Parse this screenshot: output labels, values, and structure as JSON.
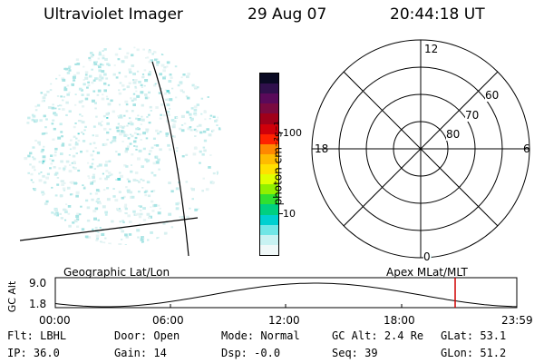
{
  "header": {
    "instrument": "Ultraviolet Imager",
    "date": "29 Aug 07",
    "time": "20:44:18 UT"
  },
  "colorbar": {
    "label": "photon cm⁻²s⁻¹",
    "tick_100": "100",
    "tick_10": "10",
    "colors": [
      "#0a0a23",
      "#30104c",
      "#5a0a5a",
      "#7a0a40",
      "#a0001a",
      "#d0000a",
      "#ff2200",
      "#ff8800",
      "#ffbb00",
      "#ffe000",
      "#e0ff00",
      "#90f000",
      "#30e030",
      "#00d080",
      "#00d0d0",
      "#70e6e6",
      "#c8f2f2",
      "#f0f8f8"
    ]
  },
  "polar": {
    "label_12": "12",
    "label_18": "18",
    "label_6": "6",
    "label_0": "0",
    "lat_60": "60",
    "lat_70": "70",
    "lat_80": "80"
  },
  "timeline": {
    "left_caption": "Geographic Lat/Lon",
    "right_caption": "Apex MLat/MLT",
    "axis_label": "GC Alt",
    "y_top": "9.0",
    "y_bottom": "1.8",
    "ticks": [
      "00:00",
      "06:00",
      "12:00",
      "18:00",
      "23:59"
    ]
  },
  "info": {
    "row1": [
      {
        "label": "Flt:",
        "value": "LBHL"
      },
      {
        "label": "Door:",
        "value": "Open"
      },
      {
        "label": "Mode:",
        "value": "Normal"
      },
      {
        "label": "GC Alt:",
        "value": "2.4 Re"
      },
      {
        "label": "GLat:",
        "value": "53.1"
      }
    ],
    "row2": [
      {
        "label": "IP:",
        "value": "36.0"
      },
      {
        "label": "Gain:",
        "value": "14"
      },
      {
        "label": "Dsp:",
        "value": "-0.0"
      },
      {
        "label": "Seq:",
        "value": "39"
      },
      {
        "label": "GLon:",
        "value": "51.2"
      }
    ]
  }
}
